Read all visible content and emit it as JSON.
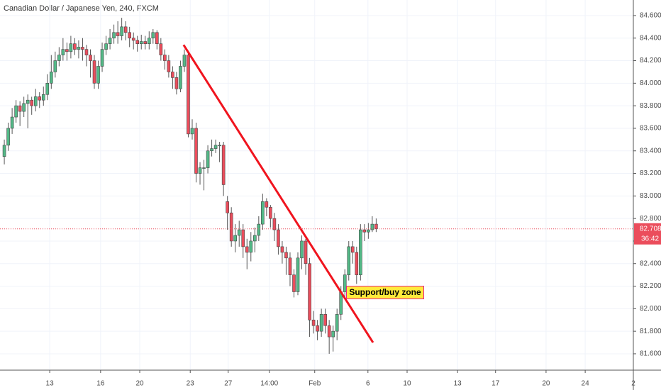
{
  "chart_data": {
    "type": "candlestick",
    "title": "Canadian Dollar / Japanese Yen, 240, FXCM",
    "open": [
      83.35,
      83.45,
      83.6,
      83.7,
      83.8,
      83.75,
      83.82,
      83.85,
      83.8,
      83.88,
      83.85,
      83.9,
      84.0,
      84.1,
      84.2,
      84.25,
      84.3,
      84.28,
      84.35,
      84.3,
      84.32,
      84.3,
      84.25,
      84.2,
      84.0,
      84.15,
      84.3,
      84.35,
      84.4,
      84.45,
      84.42,
      84.5,
      84.45,
      84.4,
      84.38,
      84.35,
      84.37,
      84.35,
      84.4,
      84.45,
      84.35,
      84.25,
      84.2,
      84.1,
      84.05,
      83.95,
      84.15,
      84.25,
      83.55,
      83.6,
      83.2,
      83.25,
      83.25,
      83.4,
      83.42,
      83.45,
      83.45,
      82.95,
      82.85,
      82.6,
      82.65,
      82.7,
      82.55,
      82.5,
      82.6,
      82.65,
      82.75,
      82.95,
      82.9,
      82.8,
      82.7,
      82.55,
      82.5,
      82.45,
      82.3,
      82.15,
      82.45,
      82.6,
      82.4,
      81.9,
      81.85,
      81.8,
      81.95,
      81.85,
      81.75,
      81.8,
      81.95,
      82.15,
      82.3,
      82.55,
      82.5,
      82.3,
      82.7,
      82.68,
      82.7,
      82.75
    ],
    "high": [
      83.5,
      83.65,
      83.78,
      83.85,
      83.84,
      83.88,
      83.9,
      83.88,
      83.95,
      83.92,
      83.97,
      84.08,
      84.25,
      84.28,
      84.32,
      84.4,
      84.36,
      84.42,
      84.4,
      84.38,
      84.4,
      84.34,
      84.3,
      84.25,
      84.2,
      84.36,
      84.42,
      84.48,
      84.52,
      84.55,
      84.58,
      84.55,
      84.5,
      84.45,
      84.42,
      84.43,
      84.42,
      84.46,
      84.48,
      84.47,
      84.4,
      84.3,
      84.25,
      84.15,
      84.1,
      84.2,
      84.3,
      84.28,
      83.68,
      83.65,
      83.3,
      83.32,
      83.45,
      83.5,
      83.5,
      83.48,
      83.48,
      83.0,
      82.9,
      82.75,
      82.78,
      82.75,
      82.62,
      82.68,
      82.72,
      82.82,
      83.02,
      82.98,
      82.92,
      82.85,
      82.75,
      82.6,
      82.55,
      82.5,
      82.35,
      82.5,
      82.65,
      82.62,
      82.45,
      81.98,
      81.9,
      82.0,
      82.0,
      81.9,
      81.85,
      82.0,
      82.2,
      82.35,
      82.6,
      82.6,
      82.55,
      82.75,
      82.75,
      82.76,
      82.82,
      82.8
    ],
    "low": [
      83.28,
      83.4,
      83.55,
      83.65,
      83.62,
      83.7,
      83.6,
      83.72,
      83.75,
      83.78,
      83.8,
      83.85,
      83.95,
      84.05,
      84.15,
      84.2,
      84.2,
      84.22,
      84.25,
      84.22,
      84.2,
      84.15,
      84.05,
      83.95,
      83.95,
      84.1,
      84.25,
      84.3,
      84.35,
      84.35,
      84.38,
      84.38,
      84.32,
      84.3,
      84.28,
      84.3,
      84.3,
      84.3,
      84.35,
      84.3,
      84.2,
      84.12,
      84.05,
      83.95,
      83.9,
      83.92,
      84.1,
      83.52,
      83.5,
      83.12,
      83.1,
      83.05,
      83.2,
      83.35,
      83.38,
      83.3,
      83.0,
      82.7,
      82.55,
      82.5,
      82.55,
      82.45,
      82.35,
      82.42,
      82.5,
      82.6,
      82.7,
      82.82,
      82.72,
      82.6,
      82.48,
      82.4,
      82.3,
      82.2,
      82.1,
      82.12,
      82.35,
      82.3,
      81.75,
      81.78,
      81.72,
      81.75,
      81.78,
      81.6,
      81.62,
      81.72,
      81.9,
      82.1,
      82.25,
      82.4,
      82.22,
      82.25,
      82.6,
      82.62,
      82.68,
      82.68
    ],
    "close": [
      83.45,
      83.6,
      83.7,
      83.8,
      83.75,
      83.82,
      83.85,
      83.8,
      83.88,
      83.85,
      83.9,
      84.0,
      84.1,
      84.2,
      84.25,
      84.3,
      84.28,
      84.35,
      84.3,
      84.32,
      84.3,
      84.25,
      84.2,
      84.0,
      84.15,
      84.3,
      84.35,
      84.4,
      84.45,
      84.42,
      84.5,
      84.45,
      84.4,
      84.38,
      84.35,
      84.37,
      84.35,
      84.4,
      84.45,
      84.35,
      84.25,
      84.2,
      84.1,
      84.05,
      83.95,
      84.15,
      84.25,
      83.55,
      83.6,
      83.2,
      83.25,
      83.25,
      83.4,
      83.42,
      83.45,
      83.45,
      83.1,
      82.85,
      82.6,
      82.65,
      82.7,
      82.55,
      82.5,
      82.6,
      82.65,
      82.75,
      82.95,
      82.9,
      82.8,
      82.7,
      82.55,
      82.5,
      82.45,
      82.3,
      82.15,
      82.45,
      82.6,
      82.4,
      81.9,
      81.85,
      81.8,
      81.95,
      81.85,
      81.75,
      81.8,
      81.95,
      82.15,
      82.3,
      82.55,
      82.5,
      82.3,
      82.7,
      82.68,
      82.7,
      82.75,
      82.708
    ],
    "up_color": "#53b987",
    "down_color": "#eb4d5c",
    "xlim": [
      -1.1,
      160.7
    ],
    "xticks": [
      {
        "value": 11.6,
        "label": "13"
      },
      {
        "value": 24.6,
        "label": "16"
      },
      {
        "value": 34.6,
        "label": "20"
      },
      {
        "value": 47.5,
        "label": "23"
      },
      {
        "value": 57.2,
        "label": "27"
      },
      {
        "value": 67.7,
        "label": "14:00"
      },
      {
        "value": 79.3,
        "label": "Feb"
      },
      {
        "value": 92.9,
        "label": "6"
      },
      {
        "value": 102.9,
        "label": "10"
      },
      {
        "value": 115.8,
        "label": "13"
      },
      {
        "value": 125.5,
        "label": "17"
      },
      {
        "value": 138.4,
        "label": "20"
      },
      {
        "value": 148.4,
        "label": "24"
      },
      {
        "value": 160.7,
        "label": "2"
      }
    ],
    "ylim": [
      81.455,
      84.738
    ],
    "yticks": [
      {
        "value": 81.6,
        "label": "81.600"
      },
      {
        "value": 81.8,
        "label": "81.800"
      },
      {
        "value": 82.0,
        "label": "82.000"
      },
      {
        "value": 82.2,
        "label": "82.200"
      },
      {
        "value": 82.4,
        "label": "82.400"
      },
      {
        "value": 82.6,
        "label": "82.600"
      },
      {
        "value": 82.8,
        "label": "82.800"
      },
      {
        "value": 83.0,
        "label": "83.000"
      },
      {
        "value": 83.2,
        "label": "83.200"
      },
      {
        "value": 83.4,
        "label": "83.400"
      },
      {
        "value": 83.6,
        "label": "83.600"
      },
      {
        "value": 83.8,
        "label": "83.800"
      },
      {
        "value": 84.0,
        "label": "84.000"
      },
      {
        "value": 84.2,
        "label": "84.200"
      },
      {
        "value": 84.4,
        "label": "84.400"
      },
      {
        "value": 84.6,
        "label": "84.600"
      }
    ],
    "grid": true,
    "current_price": 82.708,
    "countdown": "36:42",
    "price_line_color": "#eb4d5c",
    "trendline": {
      "x": [
        45.8,
        94.2
      ],
      "y": [
        84.34,
        81.7
      ],
      "color": "#f0141e"
    },
    "annotation": "Support/buy zone"
  }
}
